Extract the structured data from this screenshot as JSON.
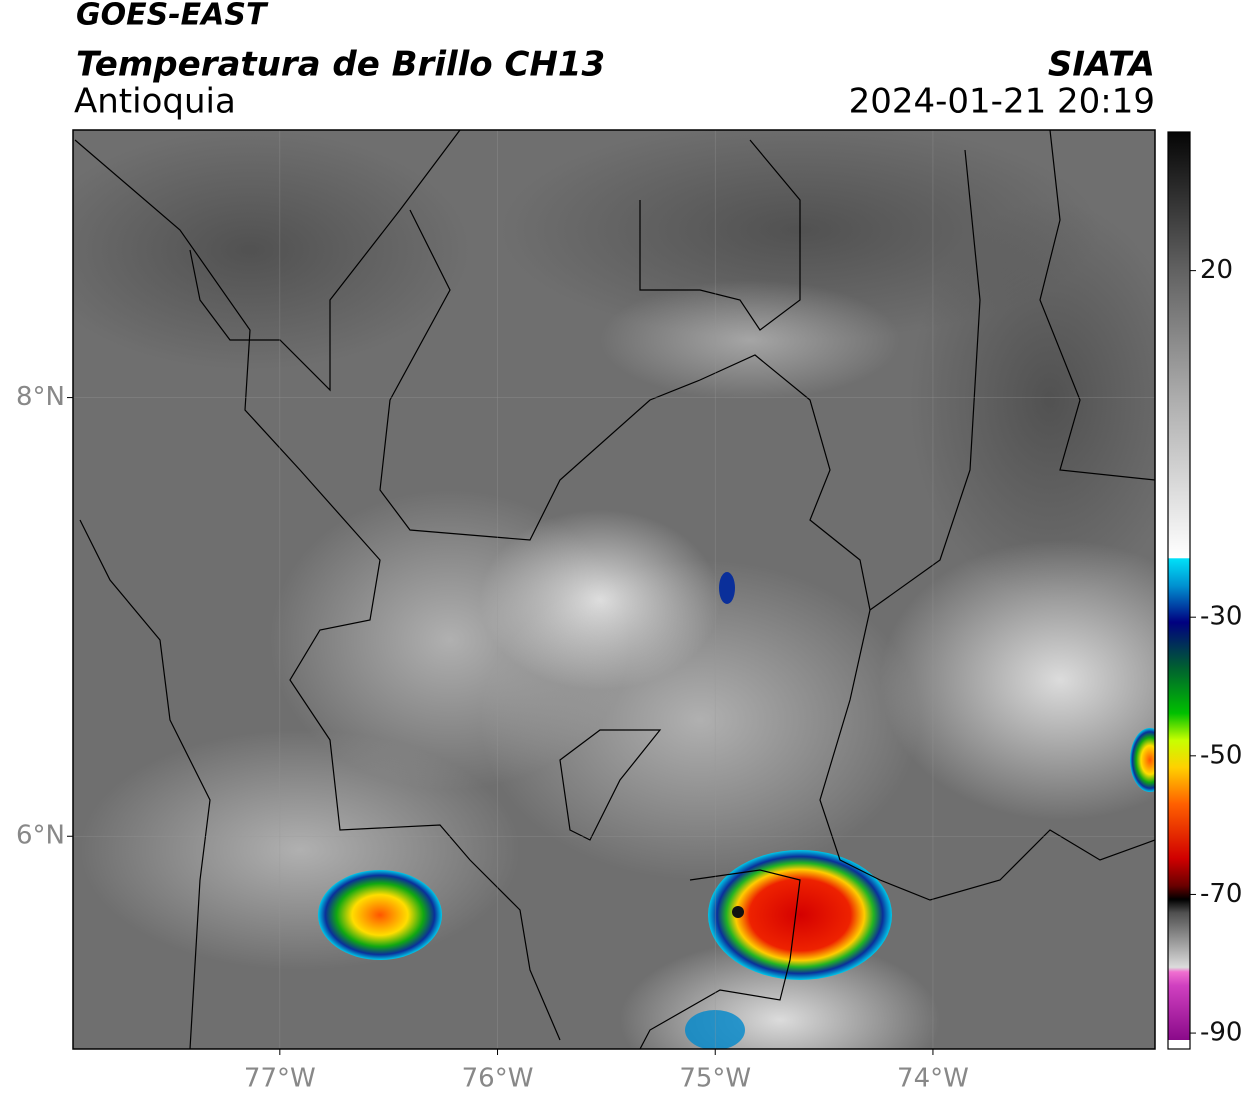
{
  "header": {
    "title": "GOES-EAST",
    "subtitle": "Temperatura de Brillo CH13",
    "region": "Antioquia",
    "source": "SIATA",
    "timestamp": "2024-01-21 20:19"
  },
  "map": {
    "xlim": [
      -77.95,
      -72.98
    ],
    "ylim": [
      5.03,
      9.22
    ],
    "xticks": [
      {
        "value": -77,
        "label": "77°W"
      },
      {
        "value": -76,
        "label": "76°W"
      },
      {
        "value": -75,
        "label": "75°W"
      },
      {
        "value": -74,
        "label": "74°W"
      }
    ],
    "yticks": [
      {
        "value": 8,
        "label": "8°N"
      },
      {
        "value": 6,
        "label": "6°N"
      }
    ],
    "grid": true
  },
  "colorbar": {
    "lim": [
      -91,
      40
    ],
    "ticks": [
      -90,
      -70,
      -50,
      -30,
      20
    ]
  }
}
